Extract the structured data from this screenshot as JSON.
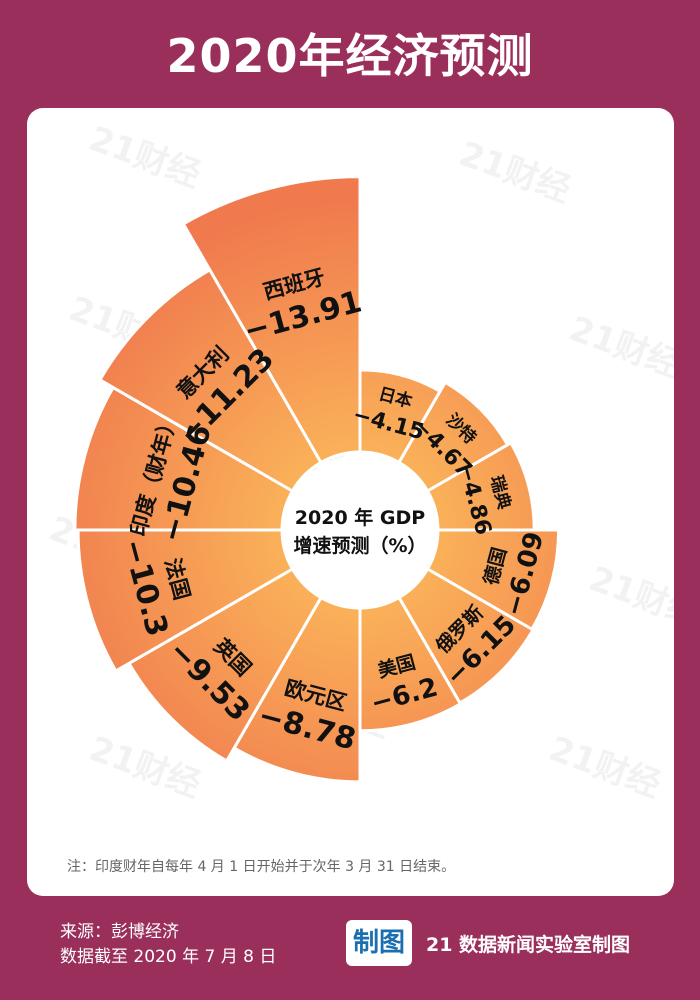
{
  "title": "2020年经济预测",
  "center_label": {
    "line1": "2020 年 GDP",
    "line2": "增速预测（%）"
  },
  "note": "注：印度财年自每年 4 月 1 日开始并于次年 3 月 31 日结束。",
  "footer": {
    "source": "来源：彭博经济",
    "date": "数据截至 2020 年 7 月 8 日",
    "brand_logo": "制图",
    "brand_text": "21 数据新闻实验室制图"
  },
  "watermark": "21财经",
  "colors": {
    "background": "#9b2f5c",
    "card": "#ffffff",
    "segment_inner": "#fbb55a",
    "segment_outer": "#f07a4e",
    "text": "#111111"
  },
  "chart_data": {
    "type": "pie",
    "variant": "polar-area",
    "unit": "%",
    "slices": [
      {
        "name": "日本",
        "value": -4.15
      },
      {
        "name": "沙特",
        "value": -4.67
      },
      {
        "name": "瑞典",
        "value": -4.86
      },
      {
        "name": "德国",
        "value": -6.09
      },
      {
        "name": "俄罗斯",
        "value": -6.15
      },
      {
        "name": "美国",
        "value": -6.2
      },
      {
        "name": "欧元区",
        "value": -8.78
      },
      {
        "name": "英国",
        "value": -9.53
      },
      {
        "name": "法国",
        "value": -10.3
      },
      {
        "name": "印度（财年）",
        "value": -10.46
      },
      {
        "name": "意大利",
        "value": -11.23
      },
      {
        "name": "西班牙",
        "value": -13.91
      }
    ]
  }
}
